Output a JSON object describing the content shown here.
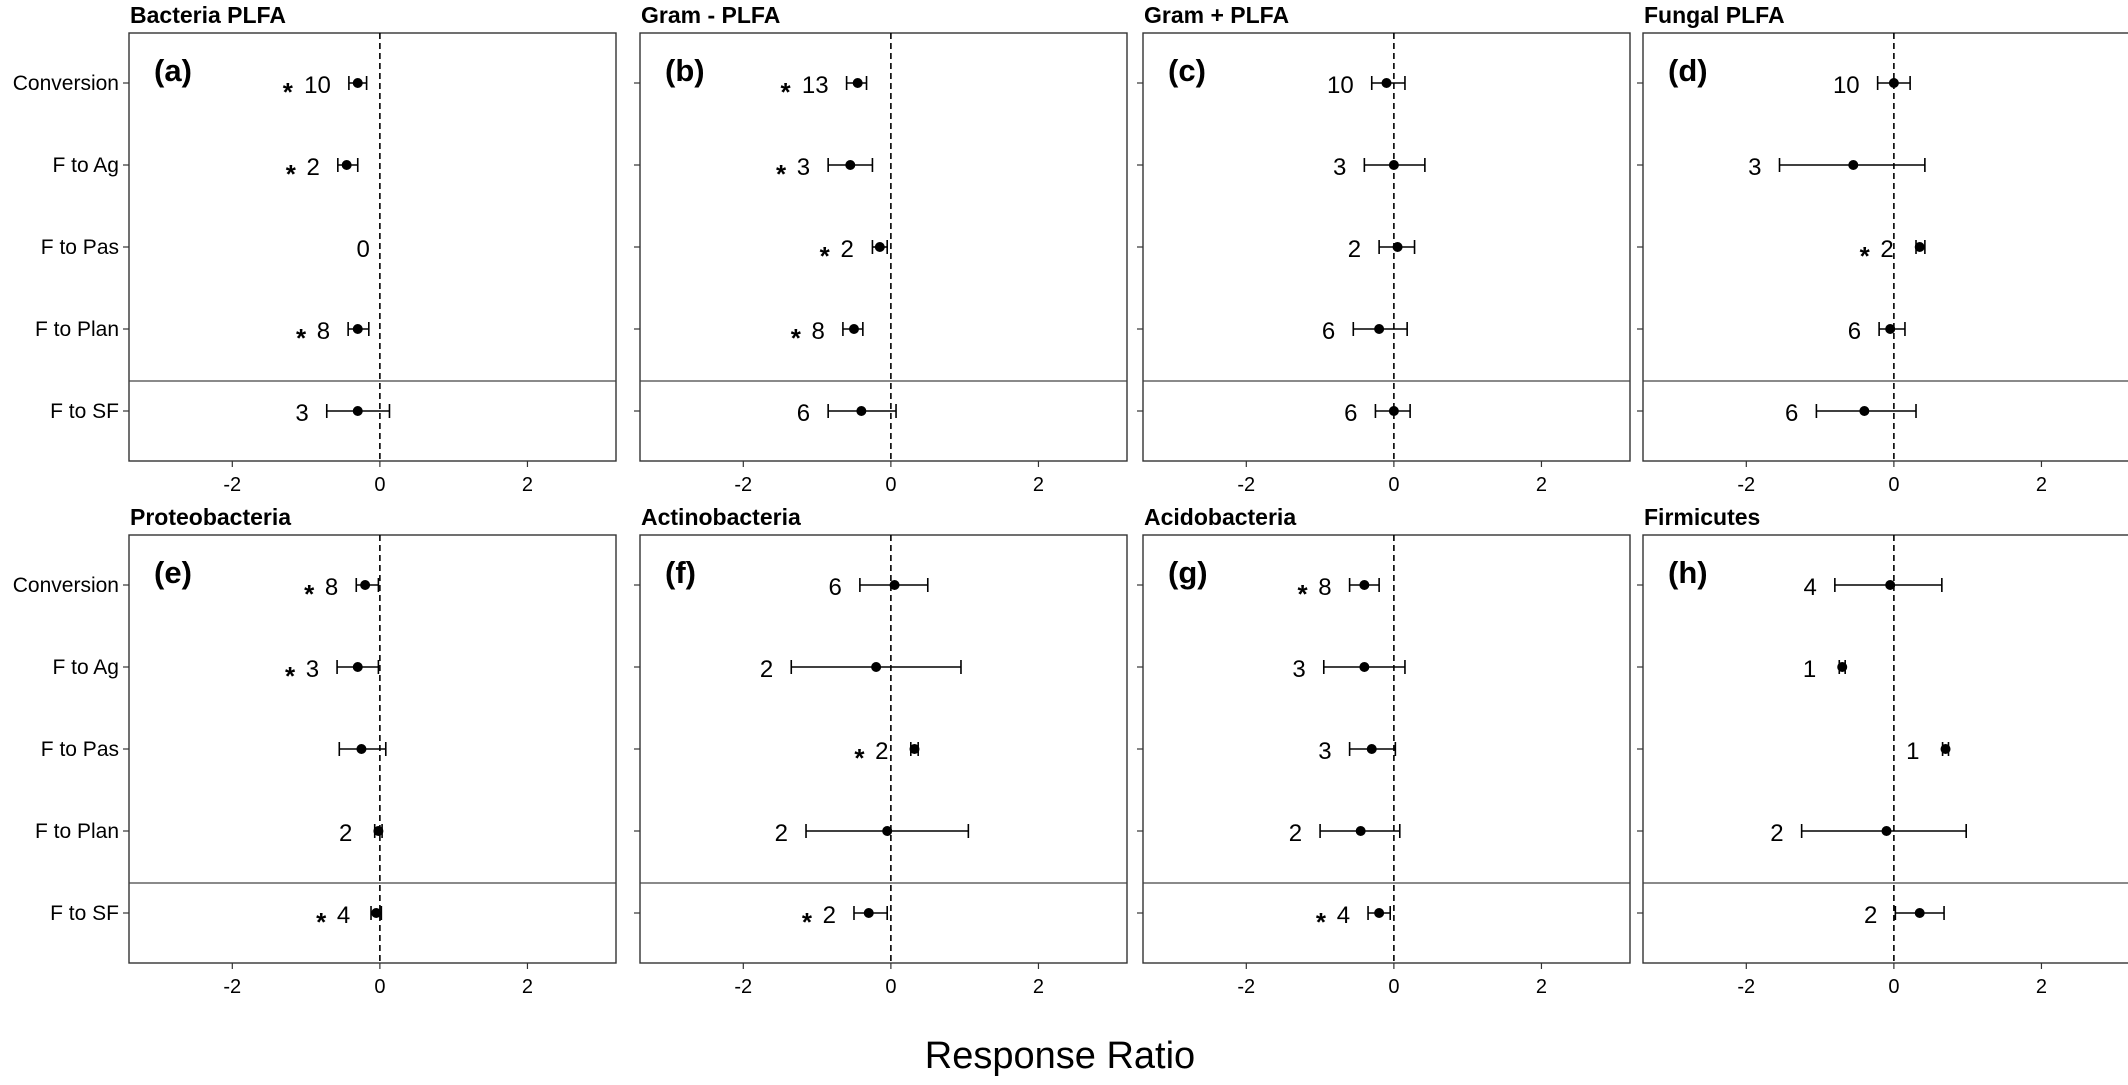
{
  "figure": {
    "xlabel": "Response Ratio",
    "categories": [
      "Conversion",
      "F to Ag",
      "F to Pas",
      "F to Plan",
      "F to SF"
    ]
  },
  "chart_data": [
    {
      "type": "scatter",
      "letter": "(a)",
      "title": "Bacteria PLFA",
      "categories": [
        "Conversion",
        "F to Ag",
        "F to Pas",
        "F to Plan",
        "F to SF"
      ],
      "xlim": [
        -3.4,
        3.2
      ],
      "xticks": [
        -2,
        0,
        2
      ],
      "reference_line": 0,
      "points": [
        {
          "category": "Conversion",
          "mean": -0.3,
          "low": -0.42,
          "high": -0.18,
          "n": "10",
          "sig": true
        },
        {
          "category": "F to Ag",
          "mean": -0.45,
          "low": -0.57,
          "high": -0.3,
          "n": "2",
          "sig": true
        },
        {
          "category": "F to Pas",
          "mean": null,
          "low": null,
          "high": null,
          "n": "0",
          "sig": false
        },
        {
          "category": "F to Plan",
          "mean": -0.3,
          "low": -0.43,
          "high": -0.15,
          "n": "8",
          "sig": true
        },
        {
          "category": "F to SF",
          "mean": -0.3,
          "low": -0.72,
          "high": 0.13,
          "n": "3",
          "sig": false
        }
      ]
    },
    {
      "type": "scatter",
      "letter": "(b)",
      "title": "Gram - PLFA",
      "categories": [
        "Conversion",
        "F to Ag",
        "F to Pas",
        "F to Plan",
        "F to SF"
      ],
      "xlim": [
        -3.4,
        3.2
      ],
      "xticks": [
        -2,
        0,
        2
      ],
      "reference_line": 0,
      "points": [
        {
          "category": "Conversion",
          "mean": -0.45,
          "low": -0.6,
          "high": -0.33,
          "n": "13",
          "sig": true
        },
        {
          "category": "F to Ag",
          "mean": -0.55,
          "low": -0.85,
          "high": -0.25,
          "n": "3",
          "sig": true
        },
        {
          "category": "F to Pas",
          "mean": -0.15,
          "low": -0.25,
          "high": -0.05,
          "n": "2",
          "sig": true
        },
        {
          "category": "F to Plan",
          "mean": -0.5,
          "low": -0.65,
          "high": -0.38,
          "n": "8",
          "sig": true
        },
        {
          "category": "F to SF",
          "mean": -0.4,
          "low": -0.85,
          "high": 0.07,
          "n": "6",
          "sig": false
        }
      ]
    },
    {
      "type": "scatter",
      "letter": "(c)",
      "title": "Gram + PLFA",
      "categories": [
        "Conversion",
        "F to Ag",
        "F to Pas",
        "F to Plan",
        "F to SF"
      ],
      "xlim": [
        -3.4,
        3.2
      ],
      "xticks": [
        -2,
        0,
        2
      ],
      "reference_line": 0,
      "points": [
        {
          "category": "Conversion",
          "mean": -0.1,
          "low": -0.3,
          "high": 0.15,
          "n": "10",
          "sig": false
        },
        {
          "category": "F to Ag",
          "mean": 0.0,
          "low": -0.4,
          "high": 0.42,
          "n": "3",
          "sig": false
        },
        {
          "category": "F to Pas",
          "mean": 0.05,
          "low": -0.2,
          "high": 0.28,
          "n": "2",
          "sig": false
        },
        {
          "category": "F to Plan",
          "mean": -0.2,
          "low": -0.55,
          "high": 0.18,
          "n": "6",
          "sig": false
        },
        {
          "category": "F to SF",
          "mean": 0.0,
          "low": -0.25,
          "high": 0.22,
          "n": "6",
          "sig": false
        }
      ]
    },
    {
      "type": "scatter",
      "letter": "(d)",
      "title": "Fungal PLFA",
      "categories": [
        "Conversion",
        "F to Ag",
        "F to Pas",
        "F to Plan",
        "F to SF"
      ],
      "xlim": [
        -3.4,
        3.2
      ],
      "xticks": [
        -2,
        0,
        2
      ],
      "reference_line": 0,
      "points": [
        {
          "category": "Conversion",
          "mean": 0.0,
          "low": -0.22,
          "high": 0.22,
          "n": "10",
          "sig": false
        },
        {
          "category": "F to Ag",
          "mean": -0.55,
          "low": -1.55,
          "high": 0.42,
          "n": "3",
          "sig": false
        },
        {
          "category": "F to Pas",
          "mean": 0.35,
          "low": 0.3,
          "high": 0.42,
          "n": "2",
          "sig": true
        },
        {
          "category": "F to Plan",
          "mean": -0.05,
          "low": -0.2,
          "high": 0.15,
          "n": "6",
          "sig": false
        },
        {
          "category": "F to SF",
          "mean": -0.4,
          "low": -1.05,
          "high": 0.3,
          "n": "6",
          "sig": false
        }
      ]
    },
    {
      "type": "scatter",
      "letter": "(e)",
      "title": "Proteobacteria",
      "categories": [
        "Conversion",
        "F to Ag",
        "F to Pas",
        "F to Plan",
        "F to SF"
      ],
      "xlim": [
        -3.4,
        3.2
      ],
      "xticks": [
        -2,
        0,
        2
      ],
      "reference_line": 0,
      "points": [
        {
          "category": "Conversion",
          "mean": -0.2,
          "low": -0.32,
          "high": -0.02,
          "n": "8",
          "sig": true
        },
        {
          "category": "F to Ag",
          "mean": -0.3,
          "low": -0.58,
          "high": -0.02,
          "n": "3",
          "sig": true
        },
        {
          "category": "F to Pas",
          "mean": -0.25,
          "low": -0.55,
          "high": 0.08,
          "n": "",
          "sig": false
        },
        {
          "category": "F to Plan",
          "mean": -0.02,
          "low": -0.07,
          "high": 0.03,
          "n": "2",
          "sig": false
        },
        {
          "category": "F to SF",
          "mean": -0.05,
          "low": -0.12,
          "high": 0.02,
          "n": "4",
          "sig": true
        }
      ]
    },
    {
      "type": "scatter",
      "letter": "(f)",
      "title": "Actinobacteria",
      "categories": [
        "Conversion",
        "F to Ag",
        "F to Pas",
        "F to Plan",
        "F to SF"
      ],
      "xlim": [
        -3.4,
        3.2
      ],
      "xticks": [
        -2,
        0,
        2
      ],
      "reference_line": 0,
      "points": [
        {
          "category": "Conversion",
          "mean": 0.05,
          "low": -0.42,
          "high": 0.5,
          "n": "6",
          "sig": false
        },
        {
          "category": "F to Ag",
          "mean": -0.2,
          "low": -1.35,
          "high": 0.95,
          "n": "2",
          "sig": false
        },
        {
          "category": "F to Pas",
          "mean": 0.32,
          "low": 0.27,
          "high": 0.37,
          "n": "2",
          "sig": true
        },
        {
          "category": "F to Plan",
          "mean": -0.05,
          "low": -1.15,
          "high": 1.05,
          "n": "2",
          "sig": false
        },
        {
          "category": "F to SF",
          "mean": -0.3,
          "low": -0.5,
          "high": -0.05,
          "n": "2",
          "sig": true
        }
      ]
    },
    {
      "type": "scatter",
      "letter": "(g)",
      "title": "Acidobacteria",
      "categories": [
        "Conversion",
        "F to Ag",
        "F to Pas",
        "F to Plan",
        "F to SF"
      ],
      "xlim": [
        -3.4,
        3.2
      ],
      "xticks": [
        -2,
        0,
        2
      ],
      "reference_line": 0,
      "points": [
        {
          "category": "Conversion",
          "mean": -0.4,
          "low": -0.6,
          "high": -0.2,
          "n": "8",
          "sig": true
        },
        {
          "category": "F to Ag",
          "mean": -0.4,
          "low": -0.95,
          "high": 0.15,
          "n": "3",
          "sig": false
        },
        {
          "category": "F to Pas",
          "mean": -0.3,
          "low": -0.6,
          "high": 0.02,
          "n": "3",
          "sig": false
        },
        {
          "category": "F to Plan",
          "mean": -0.45,
          "low": -1.0,
          "high": 0.08,
          "n": "2",
          "sig": false
        },
        {
          "category": "F to SF",
          "mean": -0.2,
          "low": -0.35,
          "high": -0.05,
          "n": "4",
          "sig": true
        }
      ]
    },
    {
      "type": "scatter",
      "letter": "(h)",
      "title": "Firmicutes",
      "categories": [
        "Conversion",
        "F to Ag",
        "F to Pas",
        "F to Plan",
        "F to SF"
      ],
      "xlim": [
        -3.4,
        3.2
      ],
      "xticks": [
        -2,
        0,
        2
      ],
      "reference_line": 0,
      "points": [
        {
          "category": "Conversion",
          "mean": -0.05,
          "low": -0.8,
          "high": 0.65,
          "n": "4",
          "sig": false
        },
        {
          "category": "F to Ag",
          "mean": -0.7,
          "low": -0.74,
          "high": -0.66,
          "n": "1",
          "sig": false
        },
        {
          "category": "F to Pas",
          "mean": 0.7,
          "low": 0.66,
          "high": 0.74,
          "n": "1",
          "sig": false
        },
        {
          "category": "F to Plan",
          "mean": -0.1,
          "low": -1.25,
          "high": 0.98,
          "n": "2",
          "sig": false
        },
        {
          "category": "F to SF",
          "mean": 0.35,
          "low": 0.02,
          "high": 0.68,
          "n": "2",
          "sig": false
        }
      ]
    }
  ]
}
